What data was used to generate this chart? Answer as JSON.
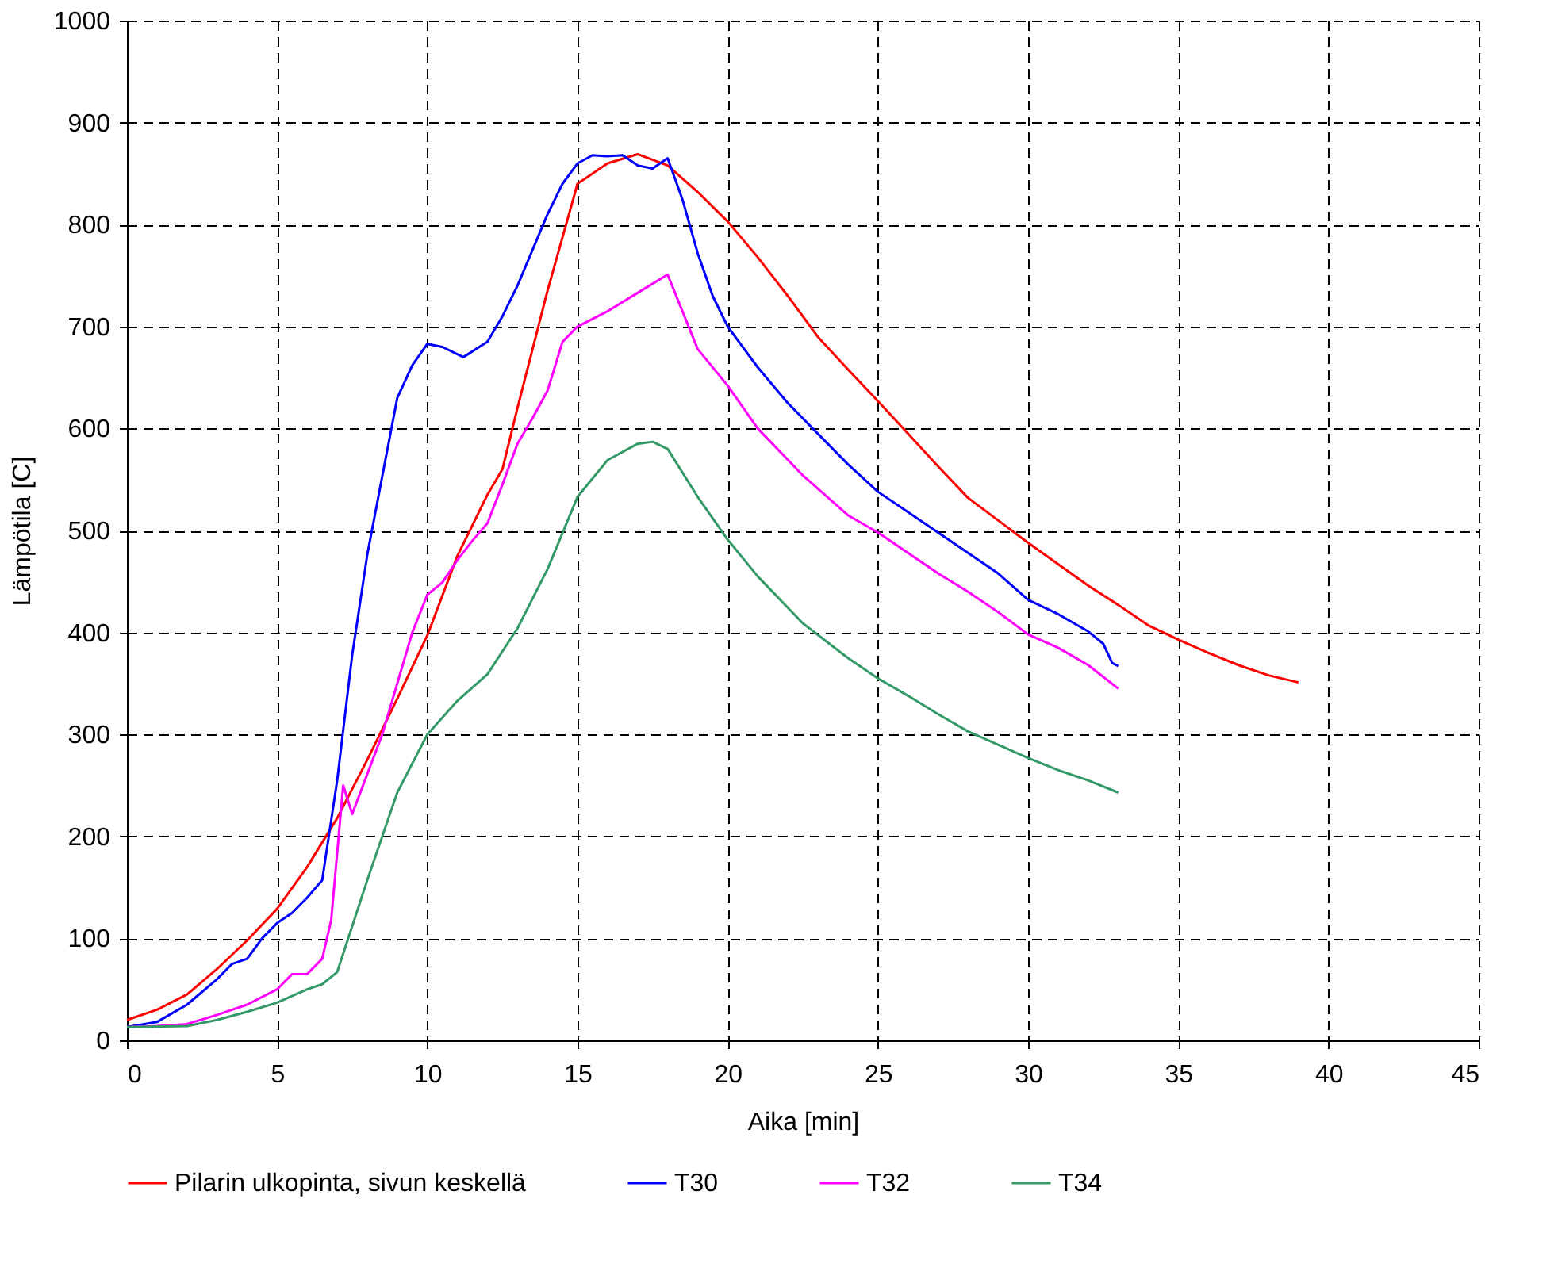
{
  "chart_data": {
    "type": "line",
    "xlabel": "Aika [min]",
    "ylabel": "Lämpötila [C]",
    "xlim": [
      0,
      45
    ],
    "xticks": [
      0,
      5,
      10,
      15,
      20,
      25,
      30,
      35,
      40,
      45
    ],
    "ylim": [
      0,
      1000
    ],
    "yticks": [
      0,
      100,
      200,
      300,
      400,
      500,
      600,
      700,
      800,
      900,
      1000
    ],
    "grid": true,
    "legend": "bottom",
    "line_style": "solid",
    "series": [
      {
        "name": "Pilarin ulkopinta, sivun keskellä",
        "color": "#ff0000",
        "x": [
          0,
          1,
          2,
          3,
          4,
          5,
          6,
          7,
          8,
          9,
          10,
          11,
          12,
          12.5,
          13,
          14,
          15,
          16,
          17,
          18,
          19,
          20,
          21,
          22,
          23,
          24,
          25,
          26,
          27,
          28,
          29,
          30,
          31,
          32,
          33,
          34,
          35,
          36,
          37,
          38,
          39
        ],
        "values": [
          20,
          30,
          45,
          70,
          98,
          129,
          170,
          218,
          275,
          335,
          397,
          475,
          535,
          560,
          620,
          735,
          840,
          860,
          869,
          858,
          832,
          803,
          768,
          730,
          690,
          658,
          627,
          595,
          563,
          532,
          510,
          488,
          467,
          446,
          427,
          407,
          393,
          380,
          368,
          358,
          351
        ]
      },
      {
        "name": "T30",
        "color": "#0000ff",
        "x": [
          0,
          1,
          2,
          3,
          3.5,
          4,
          4.5,
          5,
          5.5,
          6,
          6.5,
          7,
          7.5,
          7.7,
          8,
          8.5,
          9,
          9.5,
          10,
          10.5,
          11.2,
          12,
          12.5,
          13,
          13.5,
          14,
          14.5,
          15,
          15.5,
          16,
          16.5,
          17,
          17.5,
          18,
          18.5,
          19,
          19.5,
          20,
          21,
          22,
          23,
          24,
          25,
          26,
          27,
          28,
          29,
          30,
          31,
          32,
          32.5,
          32.8,
          33
        ],
        "values": [
          13,
          18,
          35,
          60,
          75,
          80,
          100,
          115,
          125,
          140,
          157,
          255,
          378,
          417,
          476,
          553,
          630,
          662,
          683,
          680,
          670,
          685,
          710,
          740,
          775,
          810,
          840,
          860,
          868,
          867,
          868,
          858,
          855,
          865,
          824,
          772,
          730,
          700,
          660,
          625,
          595,
          565,
          538,
          518,
          498,
          478,
          458,
          432,
          418,
          401,
          389,
          370,
          367
        ]
      },
      {
        "name": "T32",
        "color": "#ff00ff",
        "x": [
          0,
          1,
          2,
          3,
          4,
          5,
          5.5,
          6,
          6.5,
          6.8,
          7.2,
          7.5,
          8,
          8.5,
          9,
          9.5,
          10,
          10.5,
          11,
          11.5,
          12,
          12.5,
          13,
          13.5,
          14,
          14.5,
          15,
          16,
          17,
          18,
          19,
          20,
          21,
          22.5,
          24,
          25,
          26,
          27,
          28,
          29,
          30,
          31,
          32,
          33
        ],
        "values": [
          13,
          14,
          16,
          25,
          35,
          50,
          65,
          65,
          80,
          118,
          250,
          222,
          261,
          300,
          350,
          400,
          437,
          449,
          471,
          490,
          507,
          545,
          585,
          610,
          637,
          685,
          700,
          715,
          733,
          751,
          678,
          642,
          600,
          554,
          515,
          498,
          478,
          458,
          440,
          420,
          398,
          385,
          368,
          345
        ]
      },
      {
        "name": "T34",
        "color": "#339966",
        "x": [
          0,
          2,
          3,
          4,
          5,
          6,
          6.5,
          7,
          7.5,
          8,
          9,
          10,
          11,
          12,
          13,
          14,
          15,
          16,
          17,
          17.5,
          18,
          19,
          20,
          21,
          22.5,
          24,
          25,
          26,
          27,
          28,
          29,
          30,
          31,
          32,
          33
        ],
        "values": [
          13,
          14,
          20,
          28,
          37,
          50,
          55,
          67,
          112,
          157,
          243,
          300,
          333,
          359,
          404,
          462,
          533,
          569,
          585,
          587,
          580,
          533,
          491,
          455,
          409,
          375,
          355,
          338,
          320,
          303,
          290,
          277,
          265,
          255,
          243
        ]
      }
    ]
  }
}
